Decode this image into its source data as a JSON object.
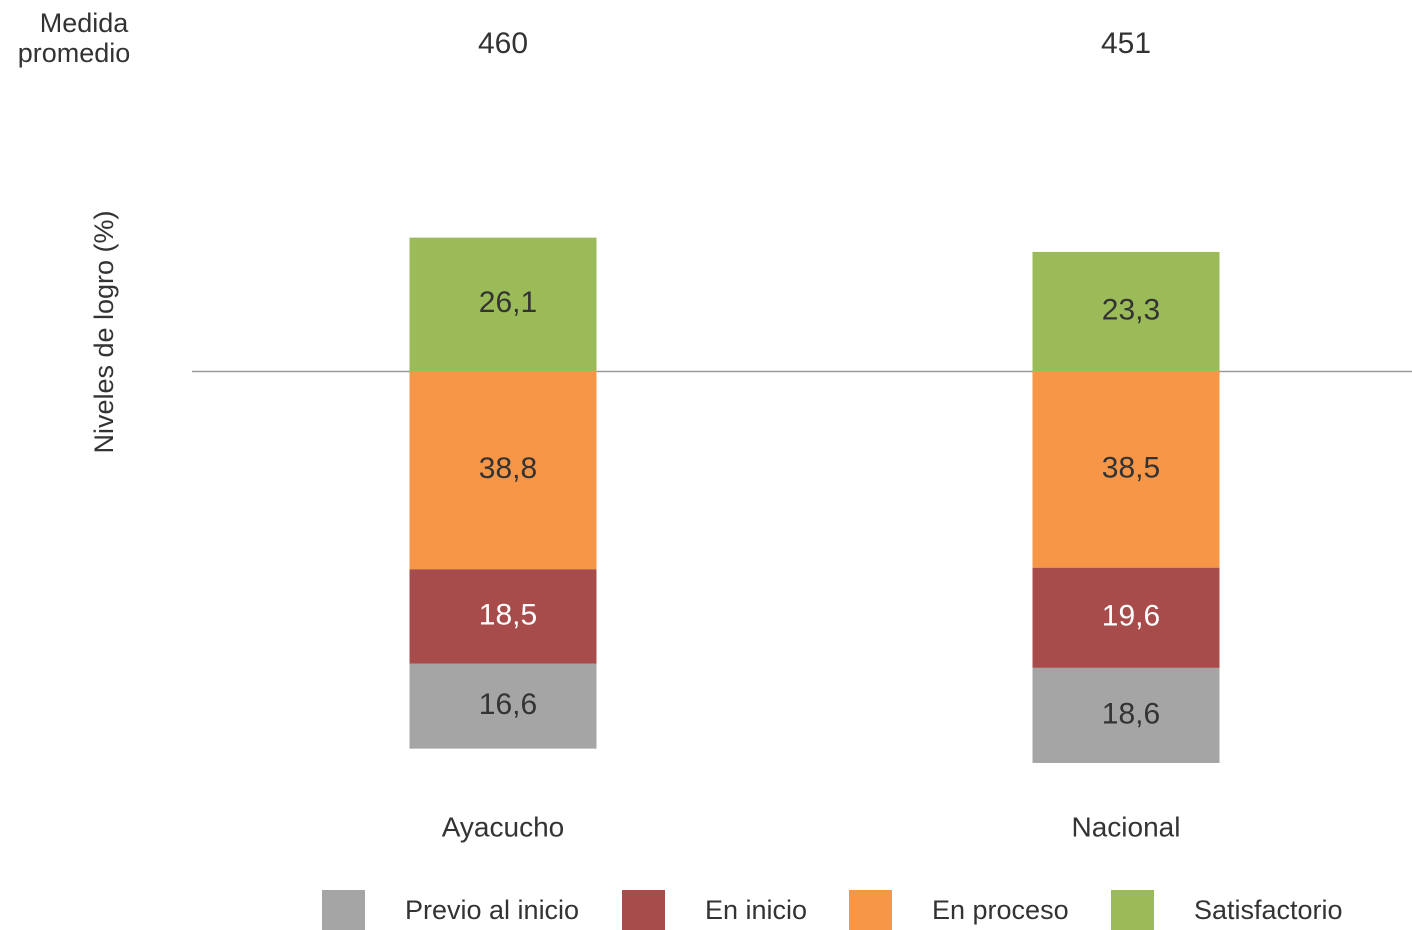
{
  "chart_data": {
    "type": "diverging_stacked_bar",
    "y_label": "Niveles de logro (%)",
    "measure_label": [
      "Medida",
      "promedio"
    ],
    "categories": [
      "Ayacucho",
      "Nacional"
    ],
    "measure_values": [
      460,
      451
    ],
    "series": [
      {
        "name": "Previo al inicio",
        "color": "#a5a5a5",
        "label_color": "#333333",
        "values": [
          16.6,
          18.6
        ],
        "value_labels": [
          "16,6",
          "18,6"
        ]
      },
      {
        "name": "En inicio",
        "color": "#a84b4b",
        "label_color": "#ffffff",
        "values": [
          18.5,
          19.6
        ],
        "value_labels": [
          "18,5",
          "19,6"
        ]
      },
      {
        "name": "En proceso",
        "color": "#f79646",
        "label_color": "#333333",
        "values": [
          38.8,
          38.5
        ],
        "value_labels": [
          "38,8",
          "38,5"
        ]
      },
      {
        "name": "Satisfactorio",
        "color": "#9bbb59",
        "label_color": "#333333",
        "values": [
          26.1,
          23.3
        ],
        "value_labels": [
          "26,1",
          "23,3"
        ]
      }
    ]
  }
}
